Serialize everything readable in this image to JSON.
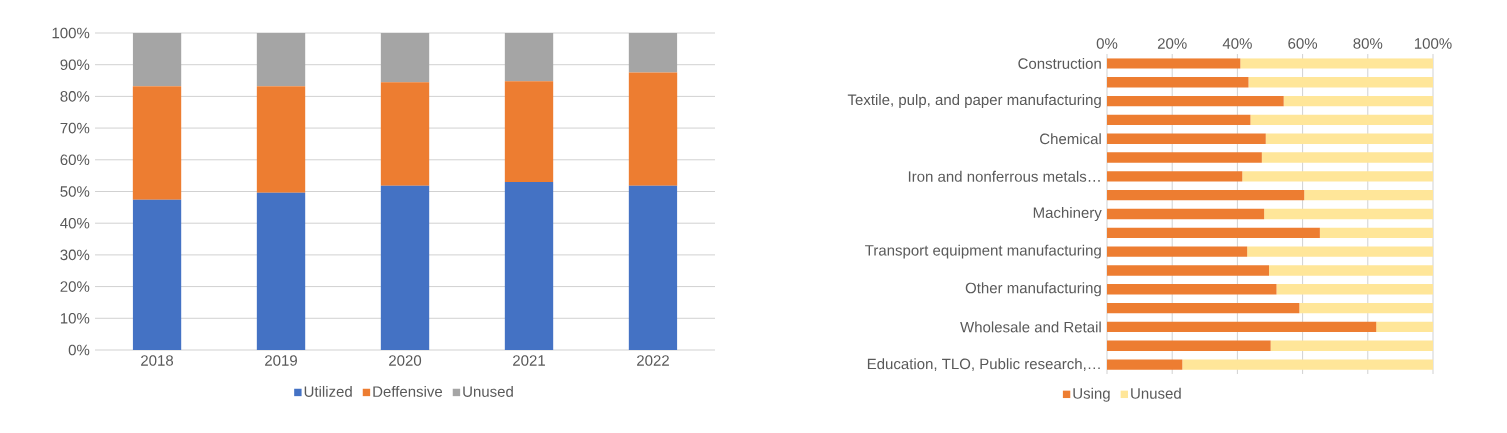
{
  "chart_data": [
    {
      "type": "bar",
      "stacked": true,
      "categories": [
        "2018",
        "2019",
        "2020",
        "2021",
        "2022"
      ],
      "series": [
        {
          "name": "Utilized",
          "color": "#4472c4",
          "values": [
            47.4,
            49.6,
            51.8,
            53.0,
            51.8
          ]
        },
        {
          "name": "Deffensive",
          "color": "#ed7d31",
          "values": [
            35.8,
            33.6,
            32.7,
            31.8,
            35.7
          ]
        },
        {
          "name": "Unused",
          "color": "#a5a5a5",
          "values": [
            16.8,
            16.8,
            15.5,
            15.2,
            12.5
          ]
        }
      ],
      "ylim": [
        0,
        100
      ],
      "yticks": [
        {
          "value": 0,
          "label": "0%"
        },
        {
          "value": 10,
          "label": "10%"
        },
        {
          "value": 20,
          "label": "20%"
        },
        {
          "value": 30,
          "label": "30%"
        },
        {
          "value": 40,
          "label": "40%"
        },
        {
          "value": 50,
          "label": "50%"
        },
        {
          "value": 60,
          "label": "60%"
        },
        {
          "value": 70,
          "label": "70%"
        },
        {
          "value": 80,
          "label": "80%"
        },
        {
          "value": 90,
          "label": "90%"
        },
        {
          "value": 100,
          "label": "100%"
        }
      ],
      "grid": "y",
      "legend": "bottom"
    },
    {
      "type": "bar",
      "stacked": true,
      "orientation": "horizontal",
      "categories": [
        "Construction",
        null,
        "Textile, pulp, and paper manufacturing",
        null,
        "Chemical",
        null,
        "Iron and nonferrous metals…",
        null,
        "Machinery",
        null,
        "Transport equipment manufacturing",
        null,
        "Other manufacturing",
        null,
        "Wholesale and Retail",
        null,
        "Education, TLO, Public research,…"
      ],
      "series": [
        {
          "name": "Using",
          "color": "#ed7d31",
          "values": [
            40.9,
            43.4,
            54.2,
            44.0,
            48.7,
            47.5,
            41.5,
            60.5,
            48.2,
            65.3,
            43.0,
            49.7,
            52.0,
            59.0,
            82.6,
            50.2,
            23.1
          ]
        },
        {
          "name": "Unused",
          "color": "#ffe699",
          "values": [
            59.1,
            56.6,
            45.8,
            56.0,
            51.3,
            52.5,
            58.5,
            39.5,
            51.8,
            34.7,
            57.0,
            50.3,
            48.0,
            41.0,
            17.4,
            49.8,
            76.9
          ]
        }
      ],
      "xlim": [
        0,
        100
      ],
      "xticks": [
        {
          "value": 0,
          "label": "0%"
        },
        {
          "value": 20,
          "label": "20%"
        },
        {
          "value": 40,
          "label": "40%"
        },
        {
          "value": 60,
          "label": "60%"
        },
        {
          "value": 80,
          "label": "80%"
        },
        {
          "value": 100,
          "label": "100%"
        }
      ],
      "grid": "x",
      "legend": "bottom"
    }
  ]
}
